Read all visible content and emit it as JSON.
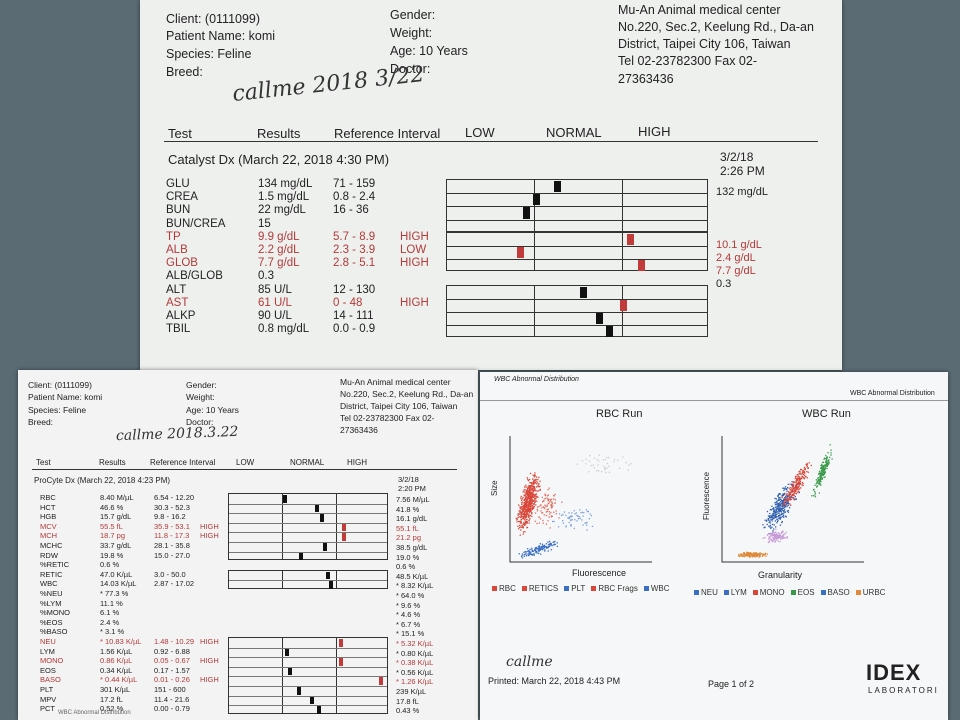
{
  "chemistry": {
    "client": "Client:  (0111099)",
    "patient": "Patient Name: komi",
    "species": "Species: Feline",
    "breed": "Breed:",
    "gender": "Gender:",
    "weight": "Weight:",
    "age": "Age: 10 Years",
    "doctor": "Doctor:",
    "clinic": [
      "Mu-An Animal medical center",
      "No.220, Sec.2, Keelung Rd., Da-an",
      "District, Taipei City 106, Taiwan",
      "Tel 02-23782300  Fax 02-",
      "27363436"
    ],
    "handwriting": "callme 2018 3/22",
    "columns": {
      "test": "Test",
      "results": "Results",
      "ref": "Reference Interval",
      "low": "LOW",
      "normal": "NORMAL",
      "high": "HIGH"
    },
    "run_title": "Catalyst Dx (March 22, 2018 4:30 PM)",
    "prev_date": "3/2/18",
    "prev_time": "2:26 PM",
    "rows": [
      {
        "test": "GLU",
        "result": "134 mg/dL",
        "ref": "71 - 159",
        "flag": "",
        "prev": "132 mg/dL",
        "pos": 0.42,
        "abn": false,
        "bar": true
      },
      {
        "test": "CREA",
        "result": "1.5 mg/dL",
        "ref": "0.8 - 2.4",
        "flag": "",
        "prev": "",
        "pos": 0.34,
        "abn": false,
        "bar": true
      },
      {
        "test": "BUN",
        "result": "22 mg/dL",
        "ref": "16 - 36",
        "flag": "",
        "prev": "",
        "pos": 0.3,
        "abn": false,
        "bar": true
      },
      {
        "test": "BUN/CREA",
        "result": "15",
        "ref": "",
        "flag": "",
        "prev": "",
        "pos": null,
        "abn": false,
        "bar": false
      },
      {
        "test": "TP",
        "result": "9.9 g/dL",
        "ref": "5.7 - 8.9",
        "flag": "HIGH",
        "prev": "10.1 g/dL",
        "pos": 0.7,
        "abn": true,
        "bar": true
      },
      {
        "test": "ALB",
        "result": "2.2 g/dL",
        "ref": "2.3 - 3.9",
        "flag": "LOW",
        "prev": "2.4 g/dL",
        "pos": 0.28,
        "abn": true,
        "bar": true
      },
      {
        "test": "GLOB",
        "result": "7.7 g/dL",
        "ref": "2.8 - 5.1",
        "flag": "HIGH",
        "prev": "7.7 g/dL",
        "pos": 0.74,
        "abn": true,
        "bar": true
      },
      {
        "test": "ALB/GLOB",
        "result": "0.3",
        "ref": "",
        "flag": "",
        "prev": "0.3",
        "pos": null,
        "abn": false,
        "bar": false
      },
      {
        "test": "ALT",
        "result": "85 U/L",
        "ref": "12 - 130",
        "flag": "",
        "prev": "",
        "pos": 0.52,
        "abn": false,
        "bar": true
      },
      {
        "test": "AST",
        "result": "61 U/L",
        "ref": "0 - 48",
        "flag": "HIGH",
        "prev": "",
        "pos": 0.67,
        "abn": true,
        "bar": true
      },
      {
        "test": "ALKP",
        "result": "90 U/L",
        "ref": "14 - 111",
        "flag": "",
        "prev": "",
        "pos": 0.58,
        "abn": false,
        "bar": true
      },
      {
        "test": "TBIL",
        "result": "0.8 mg/dL",
        "ref": "0.0 - 0.9",
        "flag": "",
        "prev": "",
        "pos": 0.62,
        "abn": false,
        "bar": true
      }
    ]
  },
  "cbc": {
    "client": "Client:  (0111099)",
    "patient": "Patient Name: komi",
    "species": "Species: Feline",
    "breed": "Breed:",
    "gender": "Gender:",
    "weight": "Weight:",
    "age": "Age: 10 Years",
    "doctor": "Doctor:",
    "clinic": [
      "Mu-An Animal medical center",
      "No.220, Sec.2, Keelung Rd., Da-an",
      "District, Taipei City 106, Taiwan",
      "Tel 02-23782300  Fax 02-",
      "27363436"
    ],
    "handwriting": "callme 2018.3.22",
    "columns": {
      "test": "Test",
      "results": "Results",
      "ref": "Reference Interval",
      "low": "LOW",
      "normal": "NORMAL",
      "high": "HIGH"
    },
    "run_title": "ProCyte Dx (March 22, 2018 4:23 PM)",
    "prev_date": "3/2/18",
    "prev_time": "2:20 PM",
    "footer": "WBC Abnormal Distribution",
    "rows": [
      {
        "test": "RBC",
        "result": "8.40 M/µL",
        "ref": "6.54 - 12.20",
        "flag": "",
        "prev": "7.56 M/µL",
        "pos": 0.35,
        "abn": false
      },
      {
        "test": "HCT",
        "result": "46.6 %",
        "ref": "30.3 - 52.3",
        "flag": "",
        "prev": "41.8 %",
        "pos": 0.55,
        "abn": false
      },
      {
        "test": "HGB",
        "result": "15.7 g/dL",
        "ref": "9.8 - 16.2",
        "flag": "",
        "prev": "16.1 g/dL",
        "pos": 0.58,
        "abn": false
      },
      {
        "test": "MCV",
        "result": "55.5 fL",
        "ref": "35.9 - 53.1",
        "flag": "HIGH",
        "prev": "55.1 fL",
        "pos": 0.72,
        "abn": true
      },
      {
        "test": "MCH",
        "result": "18.7 pg",
        "ref": "11.8 - 17.3",
        "flag": "HIGH",
        "prev": "21.2 pg",
        "pos": 0.72,
        "abn": true
      },
      {
        "test": "MCHC",
        "result": "33.7 g/dL",
        "ref": "28.1 - 35.8",
        "flag": "",
        "prev": "38.5 g/dL",
        "pos": 0.6,
        "abn": false
      },
      {
        "test": "RDW",
        "result": "19.8 %",
        "ref": "15.0 - 27.0",
        "flag": "",
        "prev": "19.0 %",
        "pos": 0.45,
        "abn": false
      },
      {
        "test": "%RETIC",
        "result": "0.6 %",
        "ref": "",
        "flag": "",
        "prev": "0.6 %",
        "pos": null,
        "abn": false
      },
      {
        "test": "RETIC",
        "result": "47.0 K/µL",
        "ref": "3.0 - 50.0",
        "flag": "",
        "prev": "48.5 K/µL",
        "pos": 0.62,
        "abn": false
      },
      {
        "test": "WBC",
        "result": "14.03 K/µL",
        "ref": "2.87 - 17.02",
        "flag": "",
        "prev": "* 8.32 K/µL",
        "pos": 0.64,
        "abn": false
      },
      {
        "test": "%NEU",
        "result": "* 77.3 %",
        "ref": "",
        "flag": "",
        "prev": "* 64.0 %",
        "pos": null,
        "abn": false
      },
      {
        "test": "%LYM",
        "result": "11.1 %",
        "ref": "",
        "flag": "",
        "prev": "* 9.6 %",
        "pos": null,
        "abn": false
      },
      {
        "test": "%MONO",
        "result": "6.1 %",
        "ref": "",
        "flag": "",
        "prev": "* 4.6 %",
        "pos": null,
        "abn": false
      },
      {
        "test": "%EOS",
        "result": "2.4 %",
        "ref": "",
        "flag": "",
        "prev": "* 6.7 %",
        "pos": null,
        "abn": false
      },
      {
        "test": "%BASO",
        "result": "* 3.1 %",
        "ref": "",
        "flag": "",
        "prev": "* 15.1 %",
        "pos": null,
        "abn": false
      },
      {
        "test": "NEU",
        "result": "* 10.83 K/µL",
        "ref": "1.48 - 10.29",
        "flag": "HIGH",
        "prev": "* 5.32 K/µL",
        "pos": 0.7,
        "abn": true
      },
      {
        "test": "LYM",
        "result": "1.56 K/µL",
        "ref": "0.92 - 6.88",
        "flag": "",
        "prev": "* 0.80 K/µL",
        "pos": 0.36,
        "abn": false
      },
      {
        "test": "MONO",
        "result": "0.86 K/µL",
        "ref": "0.05 - 0.67",
        "flag": "HIGH",
        "prev": "* 0.38 K/µL",
        "pos": 0.7,
        "abn": true
      },
      {
        "test": "EOS",
        "result": "0.34 K/µL",
        "ref": "0.17 - 1.57",
        "flag": "",
        "prev": "* 0.56 K/µL",
        "pos": 0.38,
        "abn": false
      },
      {
        "test": "BASO",
        "result": "* 0.44 K/µL",
        "ref": "0.01 - 0.26",
        "flag": "HIGH",
        "prev": "* 1.26 K/µL",
        "pos": 0.95,
        "abn": true
      },
      {
        "test": "PLT",
        "result": "301 K/µL",
        "ref": "151 - 600",
        "flag": "",
        "prev": "239 K/µL",
        "pos": 0.44,
        "abn": false
      },
      {
        "test": "MPV",
        "result": "17.2 fL",
        "ref": "11.4 - 21.6",
        "flag": "",
        "prev": "17.8 fL",
        "pos": 0.52,
        "abn": false
      },
      {
        "test": "PCT",
        "result": "0.52 %",
        "ref": "0.00 - 0.79",
        "flag": "",
        "prev": "0.43 %",
        "pos": 0.56,
        "abn": false
      }
    ]
  },
  "scatter": {
    "top_left": "WBC Abnormal Distribution",
    "top_right": "WBC Abnormal Distribution",
    "rbc_title": "RBC Run",
    "wbc_title": "WBC Run",
    "rbc_ylabel": "Size",
    "rbc_xlabel": "Fluorescence",
    "wbc_ylabel": "Fluorescence",
    "wbc_xlabel": "Granularity",
    "rbc_legend": [
      {
        "label": "RBC",
        "color": "#d9473a"
      },
      {
        "label": "RETICS",
        "color": "#d9473a"
      },
      {
        "label": "PLT",
        "color": "#3a6fc4"
      },
      {
        "label": "RBC Frags",
        "color": "#d9473a"
      },
      {
        "label": "WBC",
        "color": "#3a6fc4"
      }
    ],
    "wbc_legend": [
      {
        "label": "NEU",
        "color": "#3a6fc4"
      },
      {
        "label": "LYM",
        "color": "#3a6fc4"
      },
      {
        "label": "MONO",
        "color": "#d9473a"
      },
      {
        "label": "EOS",
        "color": "#3a9a4a"
      },
      {
        "label": "BASO",
        "color": "#3a6fc4"
      },
      {
        "label": "URBC",
        "color": "#e08a3a"
      }
    ],
    "handwriting": "callme",
    "printed": "Printed: March 22, 2018 4:43 PM",
    "page": "Page 1 of 2",
    "logo": "IDEX",
    "logo_sub": "LABORATORI"
  }
}
